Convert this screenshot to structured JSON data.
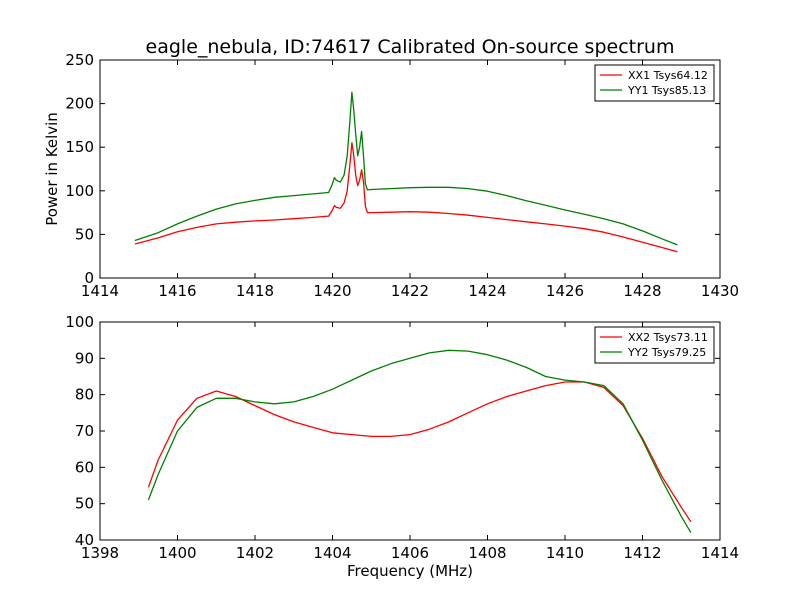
{
  "title": "eagle_nebula, ID:74617 Calibrated On-source spectrum",
  "colors": {
    "xx": "#ff0000",
    "yy": "#008000",
    "axes": "#000000",
    "background": "#ffffff"
  },
  "chart_data": [
    {
      "type": "line",
      "title": "eagle_nebula, ID:74617 Calibrated On-source spectrum",
      "xlabel": "",
      "ylabel": "Power in Kelvin",
      "xlim": [
        1414,
        1430
      ],
      "ylim": [
        0,
        250
      ],
      "xticks": [
        1414,
        1416,
        1418,
        1420,
        1422,
        1424,
        1426,
        1428,
        1430
      ],
      "yticks": [
        0,
        50,
        100,
        150,
        200,
        250
      ],
      "grid": false,
      "legend_position": "top-right",
      "series": [
        {
          "name": "XX1 Tsys64.12",
          "color": "#ff0000",
          "x": [
            1414.9,
            1415.5,
            1416.0,
            1416.5,
            1417.0,
            1417.5,
            1418.0,
            1418.5,
            1419.0,
            1419.5,
            1419.9,
            1420.0,
            1420.05,
            1420.1,
            1420.2,
            1420.3,
            1420.38,
            1420.45,
            1420.5,
            1420.55,
            1420.6,
            1420.65,
            1420.7,
            1420.75,
            1420.8,
            1420.85,
            1420.9,
            1421.0,
            1421.5,
            1422.0,
            1422.5,
            1423.0,
            1423.5,
            1424.0,
            1424.5,
            1425.0,
            1425.5,
            1426.0,
            1426.5,
            1427.0,
            1427.5,
            1428.0,
            1428.5,
            1428.9
          ],
          "y": [
            39,
            46,
            53,
            58,
            62,
            64,
            65.5,
            66.5,
            68,
            69.5,
            71,
            78,
            83,
            81,
            80,
            86,
            100,
            130,
            155,
            140,
            118,
            106,
            112,
            124,
            110,
            82,
            75,
            75,
            75.5,
            76,
            75.5,
            74,
            72,
            69.5,
            67,
            64.5,
            62,
            59.5,
            56.5,
            52.5,
            47,
            41,
            35,
            30
          ]
        },
        {
          "name": "YY1 Tsys85.13",
          "color": "#008000",
          "x": [
            1414.9,
            1415.5,
            1416.0,
            1416.5,
            1417.0,
            1417.5,
            1418.0,
            1418.5,
            1419.0,
            1419.5,
            1419.9,
            1420.0,
            1420.05,
            1420.1,
            1420.2,
            1420.3,
            1420.38,
            1420.45,
            1420.5,
            1420.55,
            1420.6,
            1420.65,
            1420.7,
            1420.75,
            1420.8,
            1420.85,
            1420.9,
            1421.0,
            1421.5,
            1422.0,
            1422.5,
            1423.0,
            1423.5,
            1424.0,
            1424.5,
            1425.0,
            1425.5,
            1426.0,
            1426.5,
            1427.0,
            1427.5,
            1428.0,
            1428.5,
            1428.9
          ],
          "y": [
            43,
            52,
            62,
            71,
            79,
            85,
            89,
            92.5,
            94.5,
            96.5,
            98,
            108,
            115,
            112,
            110,
            118,
            140,
            180,
            213,
            192,
            165,
            140,
            150,
            168,
            140,
            108,
            101,
            101.5,
            102.5,
            103.5,
            104,
            104,
            102.5,
            99.5,
            94.5,
            88.5,
            83.5,
            78,
            73,
            68,
            62,
            54,
            45,
            38
          ]
        }
      ]
    },
    {
      "type": "line",
      "title": "",
      "xlabel": "Frequency (MHz)",
      "ylabel": "",
      "xlim": [
        1398,
        1414
      ],
      "ylim": [
        40,
        100
      ],
      "xticks": [
        1398,
        1400,
        1402,
        1404,
        1406,
        1408,
        1410,
        1412,
        1414
      ],
      "yticks": [
        40,
        50,
        60,
        70,
        80,
        90,
        100
      ],
      "grid": false,
      "legend_position": "top-right",
      "series": [
        {
          "name": "XX2 Tsys73.11",
          "color": "#ff0000",
          "x": [
            1399.25,
            1399.5,
            1400.0,
            1400.5,
            1401.0,
            1401.5,
            1402.0,
            1402.5,
            1403.0,
            1403.5,
            1404.0,
            1404.5,
            1405.0,
            1405.5,
            1406.0,
            1406.5,
            1407.0,
            1407.5,
            1408.0,
            1408.5,
            1409.0,
            1409.5,
            1410.0,
            1410.5,
            1411.0,
            1411.5,
            1412.0,
            1412.5,
            1413.0,
            1413.25
          ],
          "y": [
            54.5,
            62,
            73,
            79,
            81,
            79.5,
            77,
            74.5,
            72.5,
            71,
            69.5,
            69,
            68.5,
            68.5,
            69,
            70.5,
            72.5,
            75,
            77.5,
            79.5,
            81,
            82.5,
            83.5,
            83.5,
            82,
            77,
            68,
            57.5,
            49,
            45
          ]
        },
        {
          "name": "YY2 Tsys79.25",
          "color": "#008000",
          "x": [
            1399.25,
            1399.5,
            1400.0,
            1400.5,
            1401.0,
            1401.5,
            1402.0,
            1402.5,
            1403.0,
            1403.5,
            1404.0,
            1404.5,
            1405.0,
            1405.5,
            1406.0,
            1406.5,
            1407.0,
            1407.5,
            1408.0,
            1408.5,
            1409.0,
            1409.5,
            1410.0,
            1410.5,
            1411.0,
            1411.5,
            1412.0,
            1412.5,
            1413.0,
            1413.25
          ],
          "y": [
            51,
            58,
            70,
            76.5,
            79,
            79,
            78,
            77.5,
            78,
            79.5,
            81.5,
            84,
            86.5,
            88.5,
            90,
            91.5,
            92.2,
            92,
            91,
            89.5,
            87.5,
            85,
            84,
            83.5,
            82.5,
            77.5,
            67.5,
            56.5,
            46.5,
            42
          ]
        }
      ]
    }
  ]
}
